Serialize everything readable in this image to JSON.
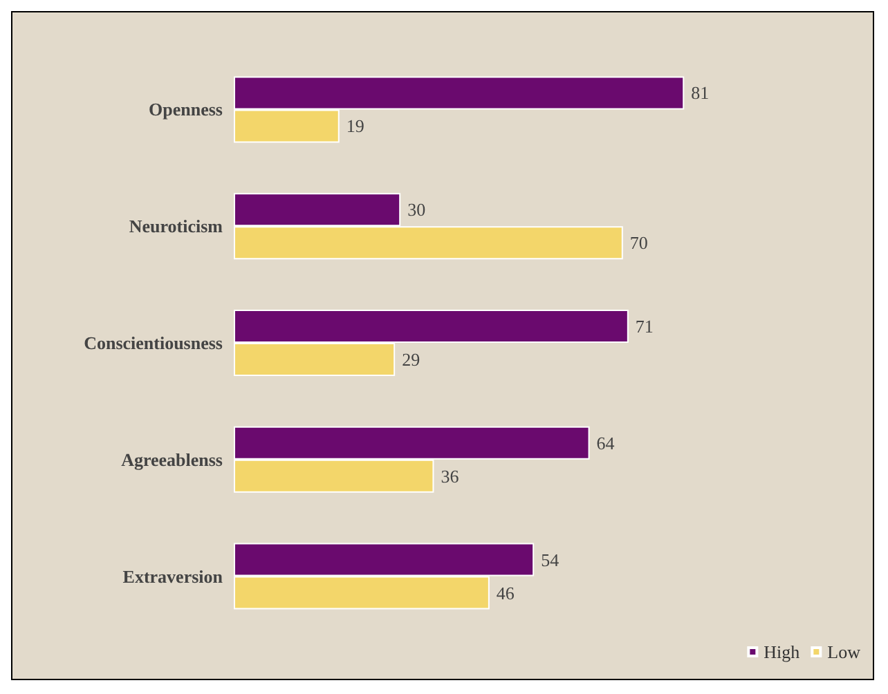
{
  "chart_data": {
    "type": "bar",
    "orientation": "horizontal",
    "categories": [
      "Openness",
      "Neuroticism",
      "Conscientiousness",
      "Agreeablenss",
      "Extraversion"
    ],
    "series": [
      {
        "name": "High",
        "color": "#6a0a6e",
        "values": [
          81,
          30,
          71,
          64,
          54
        ]
      },
      {
        "name": "Low",
        "color": "#f3d66a",
        "values": [
          19,
          70,
          29,
          36,
          46
        ]
      }
    ],
    "data_labels": true,
    "legend": "bottom right",
    "grid": false
  }
}
